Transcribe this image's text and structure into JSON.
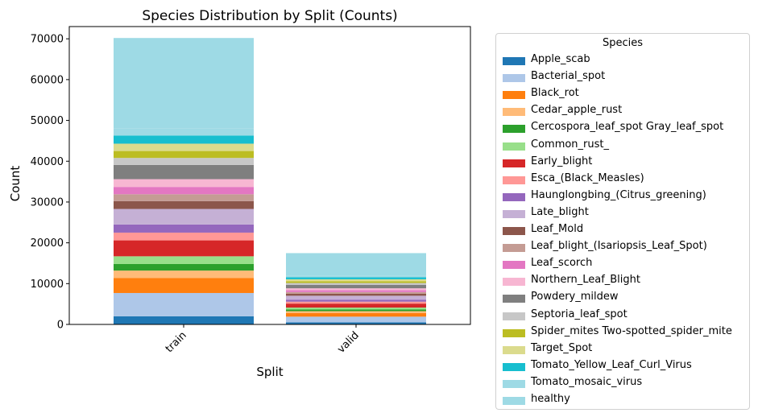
{
  "chart_data": {
    "type": "bar",
    "stacked": true,
    "title": "Species Distribution by Split (Counts)",
    "xlabel": "Split",
    "ylabel": "Count",
    "ylim": [
      0,
      73000
    ],
    "yticks": [
      0,
      10000,
      20000,
      30000,
      40000,
      50000,
      60000,
      70000
    ],
    "categories": [
      "train",
      "valid"
    ],
    "grid": false,
    "legend_title": "Species",
    "legend_placement": "outside-right",
    "series": [
      {
        "name": "Apple_scab",
        "color": "#1f77b4",
        "values": [
          2000,
          500
        ]
      },
      {
        "name": "Bacterial_spot",
        "color": "#aec7e8",
        "values": [
          5700,
          1400
        ]
      },
      {
        "name": "Black_rot",
        "color": "#ff7f0e",
        "values": [
          3700,
          900
        ]
      },
      {
        "name": "Cedar_apple_rust",
        "color": "#ffbb78",
        "values": [
          1800,
          450
        ]
      },
      {
        "name": "Cercospora_leaf_spot Gray_leaf_spot",
        "color": "#2ca02c",
        "values": [
          1600,
          400
        ]
      },
      {
        "name": "Common_rust_",
        "color": "#98df8a",
        "values": [
          1900,
          480
        ]
      },
      {
        "name": "Early_blight",
        "color": "#d62728",
        "values": [
          3900,
          970
        ]
      },
      {
        "name": "Esca_(Black_Measles)",
        "color": "#ff9896",
        "values": [
          1900,
          480
        ]
      },
      {
        "name": "Haunglongbing_(Citrus_greening)",
        "color": "#9467bd",
        "values": [
          2000,
          500
        ]
      },
      {
        "name": "Late_blight",
        "color": "#c5b0d5",
        "values": [
          3800,
          950
        ]
      },
      {
        "name": "Leaf_Mold",
        "color": "#8c564b",
        "values": [
          1900,
          470
        ]
      },
      {
        "name": "Leaf_blight_(Isariopsis_Leaf_Spot)",
        "color": "#c49c94",
        "values": [
          1700,
          430
        ]
      },
      {
        "name": "Leaf_scorch",
        "color": "#e377c2",
        "values": [
          1800,
          440
        ]
      },
      {
        "name": "Northern_Leaf_Blight",
        "color": "#f7b6d2",
        "values": [
          1900,
          480
        ]
      },
      {
        "name": "Powdery_mildew",
        "color": "#7f7f7f",
        "values": [
          3500,
          870
        ]
      },
      {
        "name": "Septoria_leaf_spot",
        "color": "#c7c7c7",
        "values": [
          1700,
          440
        ]
      },
      {
        "name": "Spider_mites Two-spotted_spider_mite",
        "color": "#bcbd22",
        "values": [
          1700,
          440
        ]
      },
      {
        "name": "Target_Spot",
        "color": "#dbdb8d",
        "values": [
          1800,
          460
        ]
      },
      {
        "name": "Tomato_Yellow_Leaf_Curl_Virus",
        "color": "#17becf",
        "values": [
          2000,
          490
        ]
      },
      {
        "name": "Tomato_mosaic_virus",
        "color": "#9edae5",
        "values": [
          1800,
          450
        ]
      },
      {
        "name": "healthy",
        "color": "#9edae5",
        "values": [
          22100,
          5476
        ]
      }
    ]
  }
}
